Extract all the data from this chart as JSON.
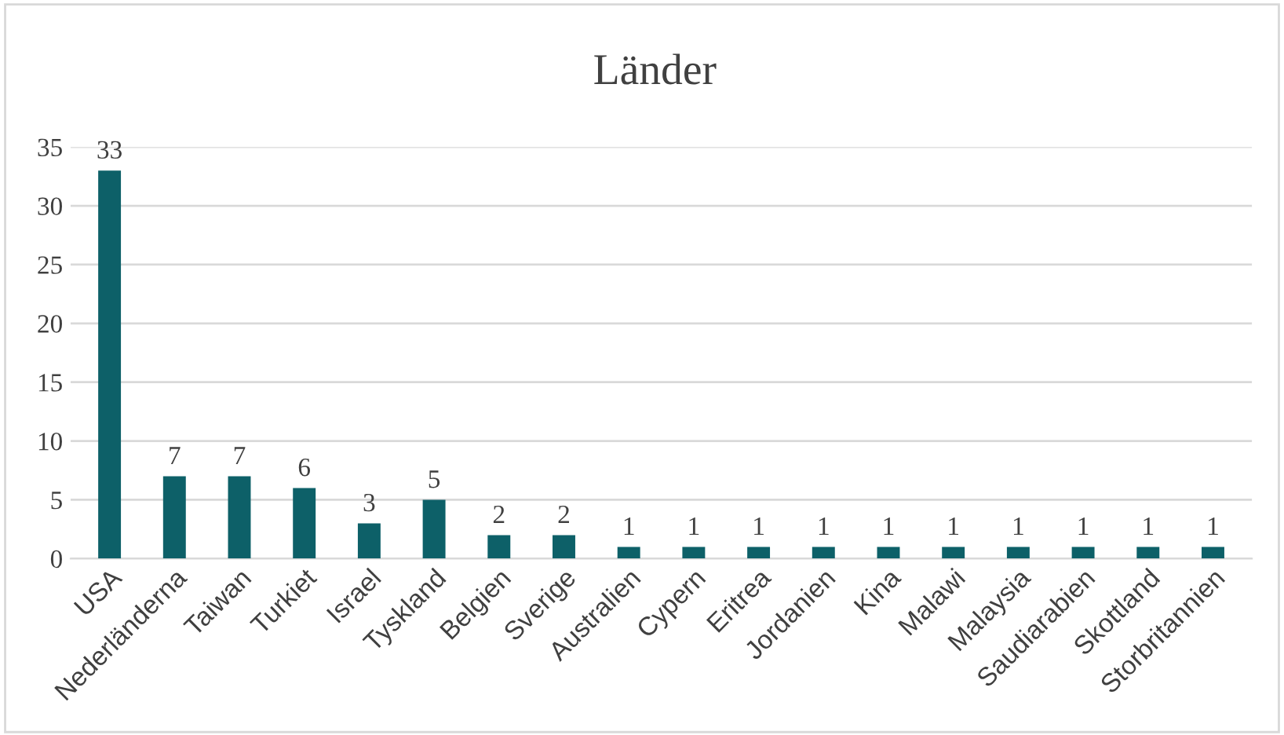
{
  "chart_data": {
    "type": "bar",
    "title": "Länder",
    "categories": [
      "USA",
      "Nederländerna",
      "Taiwan",
      "Turkiet",
      "Israel",
      "Tyskland",
      "Belgien",
      "Sverige",
      "Australien",
      "Cypern",
      "Eritrea",
      "Jordanien",
      "Kina",
      "Malawi",
      "Malaysia",
      "Saudiarabien",
      "Skottland",
      "Storbritannien"
    ],
    "values": [
      33,
      7,
      7,
      6,
      3,
      5,
      2,
      2,
      1,
      1,
      1,
      1,
      1,
      1,
      1,
      1,
      1,
      1
    ],
    "color": "#0d6068",
    "ylim": [
      0,
      35
    ],
    "yticks": [
      0,
      5,
      10,
      15,
      20,
      25,
      30,
      35
    ],
    "grid": "y",
    "data_labels": true,
    "legend": false
  }
}
